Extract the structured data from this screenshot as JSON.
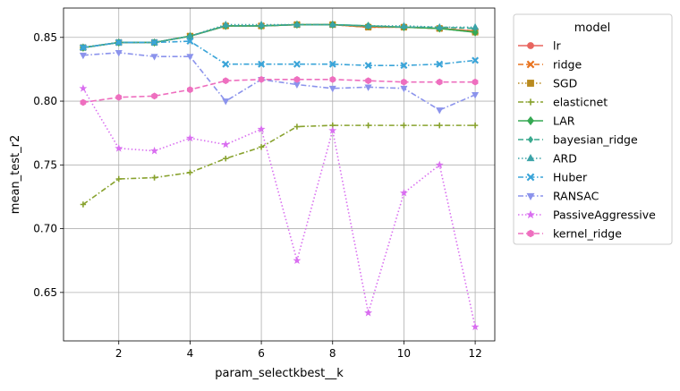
{
  "chart_data": {
    "type": "line",
    "title": "",
    "xlabel": "param_selectkbest__k",
    "ylabel": "mean_test_r2",
    "xlim": [
      0.45,
      12.55
    ],
    "ylim": [
      0.612,
      0.873
    ],
    "xticks": [
      2,
      4,
      6,
      8,
      10,
      12
    ],
    "xtick_labels": [
      "2",
      "4",
      "6",
      "8",
      "10",
      "12"
    ],
    "yticks": [
      0.65,
      0.7,
      0.75,
      0.8,
      0.85
    ],
    "ytick_labels": [
      "0.65",
      "0.70",
      "0.75",
      "0.80",
      "0.85"
    ],
    "grid": true,
    "legend": {
      "title": "model",
      "placement": "outside-right"
    },
    "x": [
      1,
      2,
      3,
      4,
      5,
      6,
      7,
      8,
      9,
      10,
      11,
      12
    ],
    "series": [
      {
        "name": "lr",
        "color": "#e8655f",
        "marker": "circle",
        "dash": "solid",
        "values": [
          0.842,
          0.846,
          0.846,
          0.851,
          0.859,
          0.859,
          0.86,
          0.86,
          0.858,
          0.858,
          0.857,
          0.855
        ]
      },
      {
        "name": "ridge",
        "color": "#e8731f",
        "marker": "x",
        "dash": "dashed",
        "values": [
          0.842,
          0.846,
          0.846,
          0.851,
          0.859,
          0.859,
          0.86,
          0.86,
          0.858,
          0.858,
          0.857,
          0.855
        ]
      },
      {
        "name": "SGD",
        "color": "#b98a1f",
        "marker": "square",
        "dash": "dotted",
        "values": [
          0.842,
          0.846,
          0.846,
          0.851,
          0.859,
          0.859,
          0.86,
          0.86,
          0.858,
          0.858,
          0.857,
          0.854
        ]
      },
      {
        "name": "elasticnet",
        "color": "#88a22e",
        "marker": "plus",
        "dash": "dashdot",
        "values": [
          0.719,
          0.739,
          0.74,
          0.744,
          0.755,
          0.764,
          0.78,
          0.781,
          0.781,
          0.781,
          0.781,
          0.781
        ]
      },
      {
        "name": "LAR",
        "color": "#36a953",
        "marker": "diamond",
        "dash": "solid",
        "values": [
          0.842,
          0.846,
          0.846,
          0.851,
          0.859,
          0.859,
          0.86,
          0.86,
          0.859,
          0.858,
          0.857,
          0.854
        ]
      },
      {
        "name": "bayesian_ridge",
        "color": "#3aa98e",
        "marker": "diamond-small",
        "dash": "dashed",
        "values": [
          0.842,
          0.846,
          0.846,
          0.851,
          0.859,
          0.859,
          0.86,
          0.86,
          0.859,
          0.858,
          0.858,
          0.857
        ]
      },
      {
        "name": "ARD",
        "color": "#3ba3a8",
        "marker": "triangle-up",
        "dash": "dotted",
        "values": [
          0.842,
          0.846,
          0.846,
          0.851,
          0.86,
          0.86,
          0.86,
          0.86,
          0.859,
          0.859,
          0.858,
          0.858
        ]
      },
      {
        "name": "Huber",
        "color": "#3aa4d8",
        "marker": "x",
        "dash": "dashdot",
        "values": [
          0.842,
          0.846,
          0.846,
          0.847,
          0.829,
          0.829,
          0.829,
          0.829,
          0.828,
          0.828,
          0.829,
          0.832
        ]
      },
      {
        "name": "RANSAC",
        "color": "#8b93ec",
        "marker": "triangle-down",
        "dash": "dashdot",
        "values": [
          0.836,
          0.838,
          0.835,
          0.835,
          0.8,
          0.817,
          0.813,
          0.81,
          0.811,
          0.81,
          0.793,
          0.805
        ]
      },
      {
        "name": "PassiveAggressive",
        "color": "#d96ef0",
        "marker": "star",
        "dash": "dotted",
        "values": [
          0.81,
          0.763,
          0.761,
          0.771,
          0.766,
          0.778,
          0.675,
          0.777,
          0.634,
          0.728,
          0.75,
          0.623
        ]
      },
      {
        "name": "kernel_ridge",
        "color": "#ee6fbf",
        "marker": "hexagon",
        "dash": "dashed",
        "values": [
          0.799,
          0.803,
          0.804,
          0.809,
          0.816,
          0.817,
          0.817,
          0.817,
          0.816,
          0.815,
          0.815,
          0.815
        ]
      }
    ]
  }
}
